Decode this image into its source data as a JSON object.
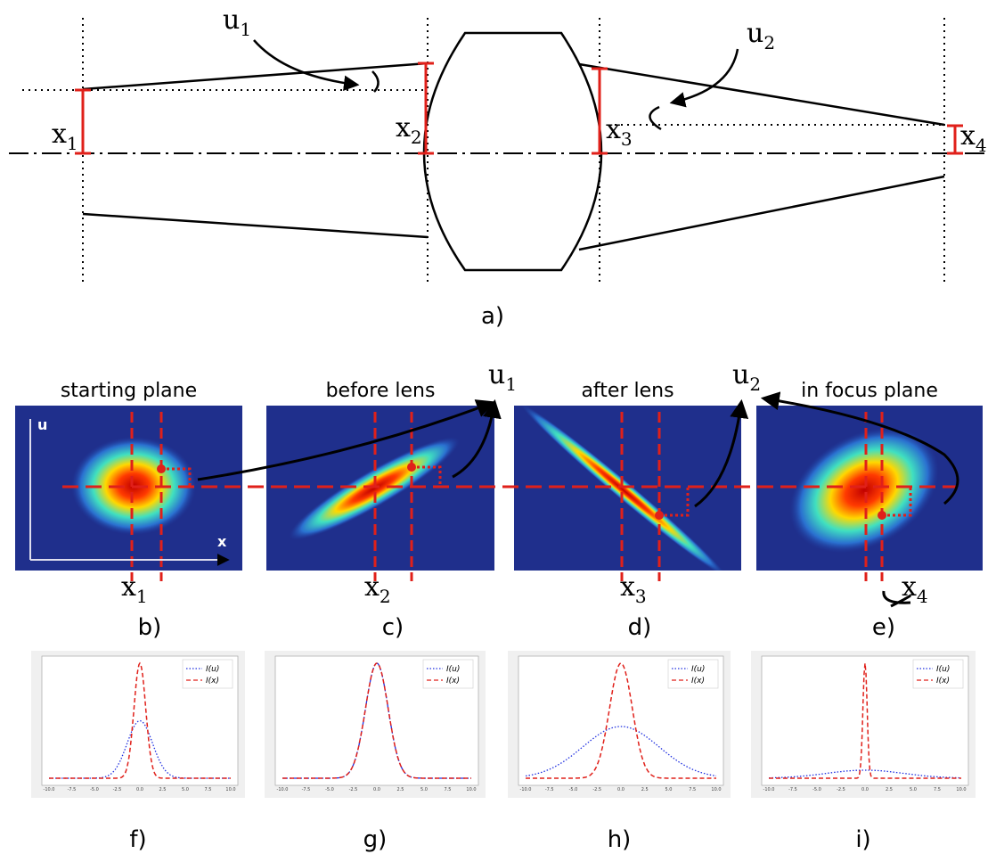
{
  "diagram_a": {
    "label": "a)",
    "angles": [
      {
        "base": "u",
        "sub": "1"
      },
      {
        "base": "u",
        "sub": "2"
      }
    ],
    "positions": [
      {
        "base": "x",
        "sub": "1"
      },
      {
        "base": "x",
        "sub": "2"
      },
      {
        "base": "x",
        "sub": "3"
      },
      {
        "base": "x",
        "sub": "4"
      }
    ]
  },
  "phase_space": {
    "axis_u": "u",
    "axis_x": "x",
    "angles": [
      {
        "base": "u",
        "sub": "1"
      },
      {
        "base": "u",
        "sub": "2"
      }
    ],
    "planes": [
      {
        "title": "starting plane",
        "position": {
          "base": "x",
          "sub": "1"
        },
        "label": "b)"
      },
      {
        "title": "before lens",
        "position": {
          "base": "x",
          "sub": "2"
        },
        "label": "c)"
      },
      {
        "title": "after lens",
        "position": {
          "base": "x",
          "sub": "3"
        },
        "label": "d)"
      },
      {
        "title": "in focus plane",
        "position": {
          "base": "x",
          "sub": "4"
        },
        "label": "e)"
      }
    ]
  },
  "profiles": [
    {
      "label": "f)",
      "legend": [
        "I(u)",
        "I(x)"
      ],
      "xtick_labels": [
        "-10.0",
        "-7.5",
        "-5.0",
        "-2.5",
        "0.0",
        "2.5",
        "5.0",
        "7.5",
        "10.0"
      ]
    },
    {
      "label": "g)",
      "legend": [
        "I(u)",
        "I(x)"
      ],
      "xtick_labels": [
        "-10.0",
        "-7.5",
        "-5.0",
        "-2.5",
        "0.0",
        "2.5",
        "5.0",
        "7.5",
        "10.0"
      ]
    },
    {
      "label": "h)",
      "legend": [
        "I(u)",
        "I(x)"
      ],
      "xtick_labels": [
        "-10.0",
        "-7.5",
        "-5.0",
        "-2.5",
        "0.0",
        "2.5",
        "5.0",
        "7.5",
        "10.0"
      ]
    },
    {
      "label": "i)",
      "legend": [
        "I(u)",
        "I(x)"
      ],
      "xtick_labels": [
        "-10.0",
        "-7.5",
        "-5.0",
        "-2.5",
        "0.0",
        "2.5",
        "5.0",
        "7.5",
        "10.0"
      ]
    }
  ]
}
